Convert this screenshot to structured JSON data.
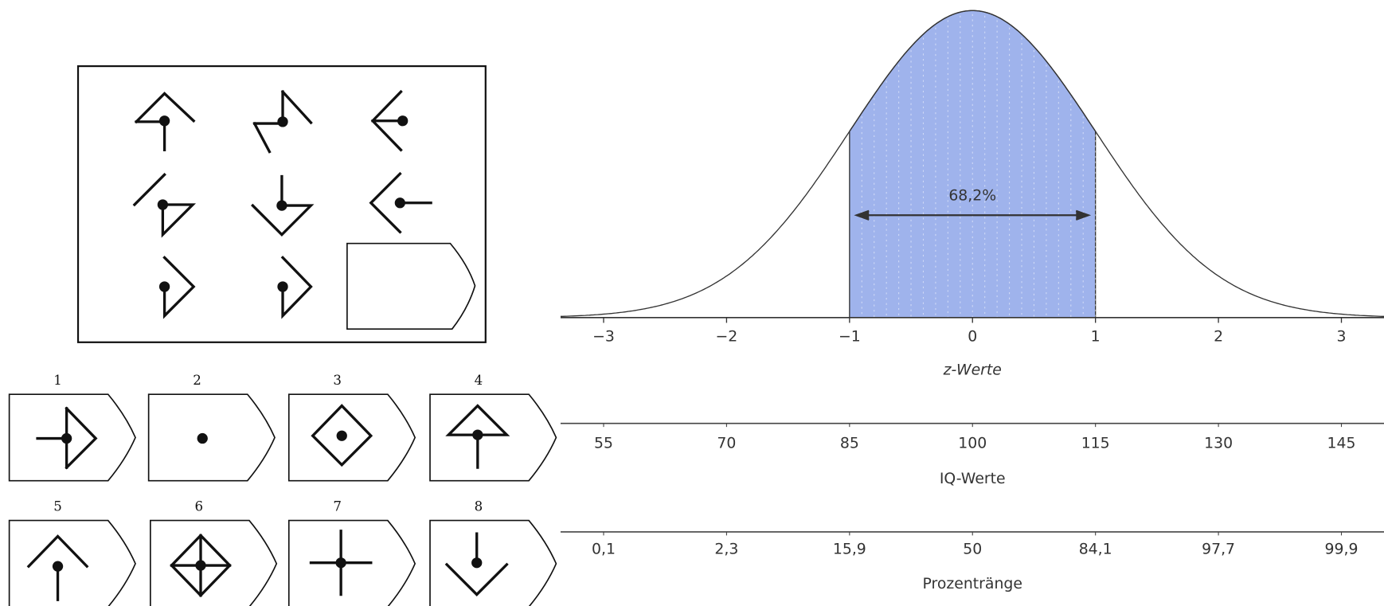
{
  "puzzle": {
    "option_labels": [
      "1",
      "2",
      "3",
      "4",
      "5",
      "6",
      "7",
      "8"
    ]
  },
  "chart_data": {
    "type": "normal",
    "xlim": [
      -3.35,
      3.35
    ],
    "xticks": [
      {
        "value": -3,
        "label": "−3"
      },
      {
        "value": -2,
        "label": "−2"
      },
      {
        "value": -1,
        "label": "−1"
      },
      0,
      1,
      2,
      3
    ],
    "xlabel": "z-Werte",
    "band": [
      -1,
      1
    ],
    "band_label": "68,2%",
    "color": "#9fb3ec",
    "scales": [
      {
        "label": "IQ-Werte",
        "ticks": [
          55,
          70,
          85,
          100,
          115,
          130,
          145
        ]
      },
      {
        "label": "Prozentränge",
        "ticks": [
          {
            "value": 0.1,
            "label": "0,1"
          },
          {
            "value": 2.3,
            "label": "2,3"
          },
          {
            "value": 15.9,
            "label": "15,9"
          },
          50,
          {
            "value": 84.1,
            "label": "84,1"
          },
          {
            "value": 97.7,
            "label": "97,7"
          },
          {
            "value": 99.9,
            "label": "99,9"
          }
        ]
      }
    ]
  }
}
